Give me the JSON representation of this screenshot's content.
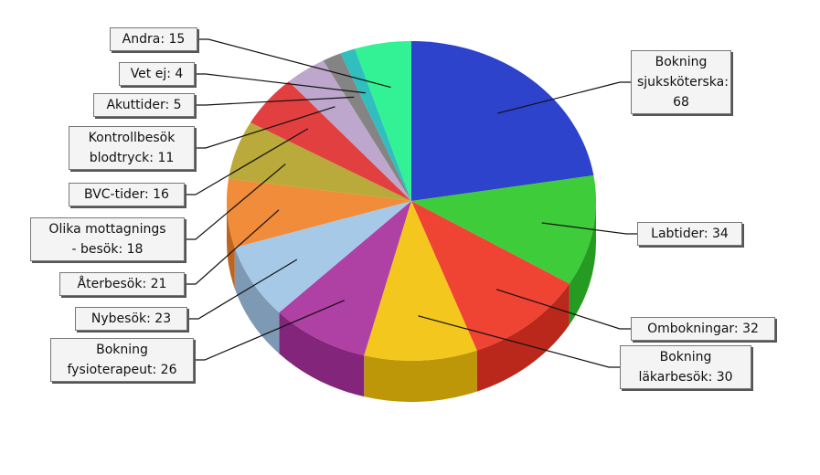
{
  "chart_data": {
    "type": "pie",
    "value_labels": [
      "Bokning\nsjuksköterska: 68",
      "Labtider: 34",
      "Ombokningar: 32",
      "Bokning\nläkarbesök: 30",
      "Bokning\nfysioterapeut: 26",
      "Nybesök: 23",
      "Återbesök: 21",
      "Olika mottagnings\n- besök: 18",
      "BVC-tider: 16",
      "Kontrollbesök\nblodtryck: 11",
      "Akuttider: 5",
      "Vet ej: 4",
      "Andra: 15"
    ],
    "values": [
      68,
      34,
      32,
      30,
      26,
      23,
      21,
      18,
      16,
      11,
      5,
      4,
      15
    ],
    "colors": [
      "#1b33c8",
      "#2fc82a",
      "#ee3322",
      "#f2c20a",
      "#a8309c",
      "#a0c4e6",
      "#f0822a",
      "#b4a22a",
      "#e03030",
      "#b8a0c8",
      "#7a7a7a",
      "#20b8b8",
      "#22f08c"
    ]
  }
}
